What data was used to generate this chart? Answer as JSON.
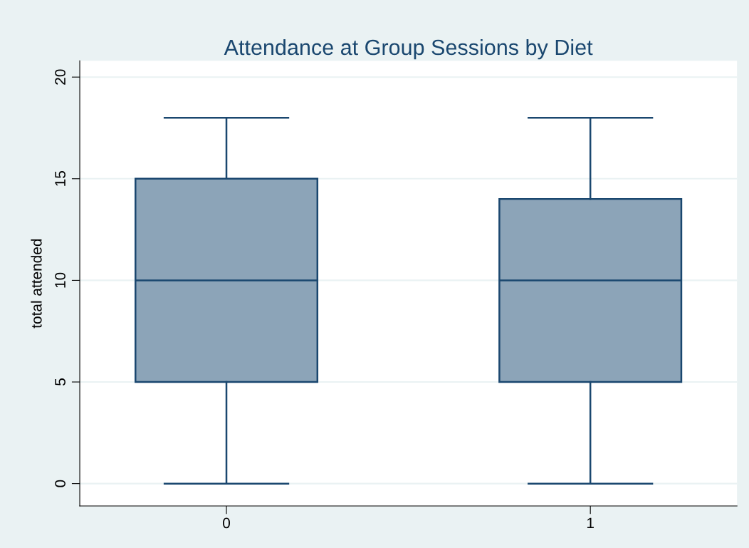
{
  "chart_data": {
    "type": "box",
    "title": "Attendance at Group Sessions by Diet",
    "ylabel": "total attended",
    "categories": [
      "0",
      "1"
    ],
    "boxes": [
      {
        "low": 0,
        "q1": 5,
        "median": 10,
        "q3": 15,
        "high": 18
      },
      {
        "low": 0,
        "q1": 5,
        "median": 10,
        "q3": 14,
        "high": 18
      }
    ],
    "color": "#8ca4b8",
    "ylim": [
      -1.1,
      20.8
    ],
    "yticks": [
      0,
      5,
      10,
      15,
      20
    ],
    "grid": "y",
    "legend": false
  }
}
